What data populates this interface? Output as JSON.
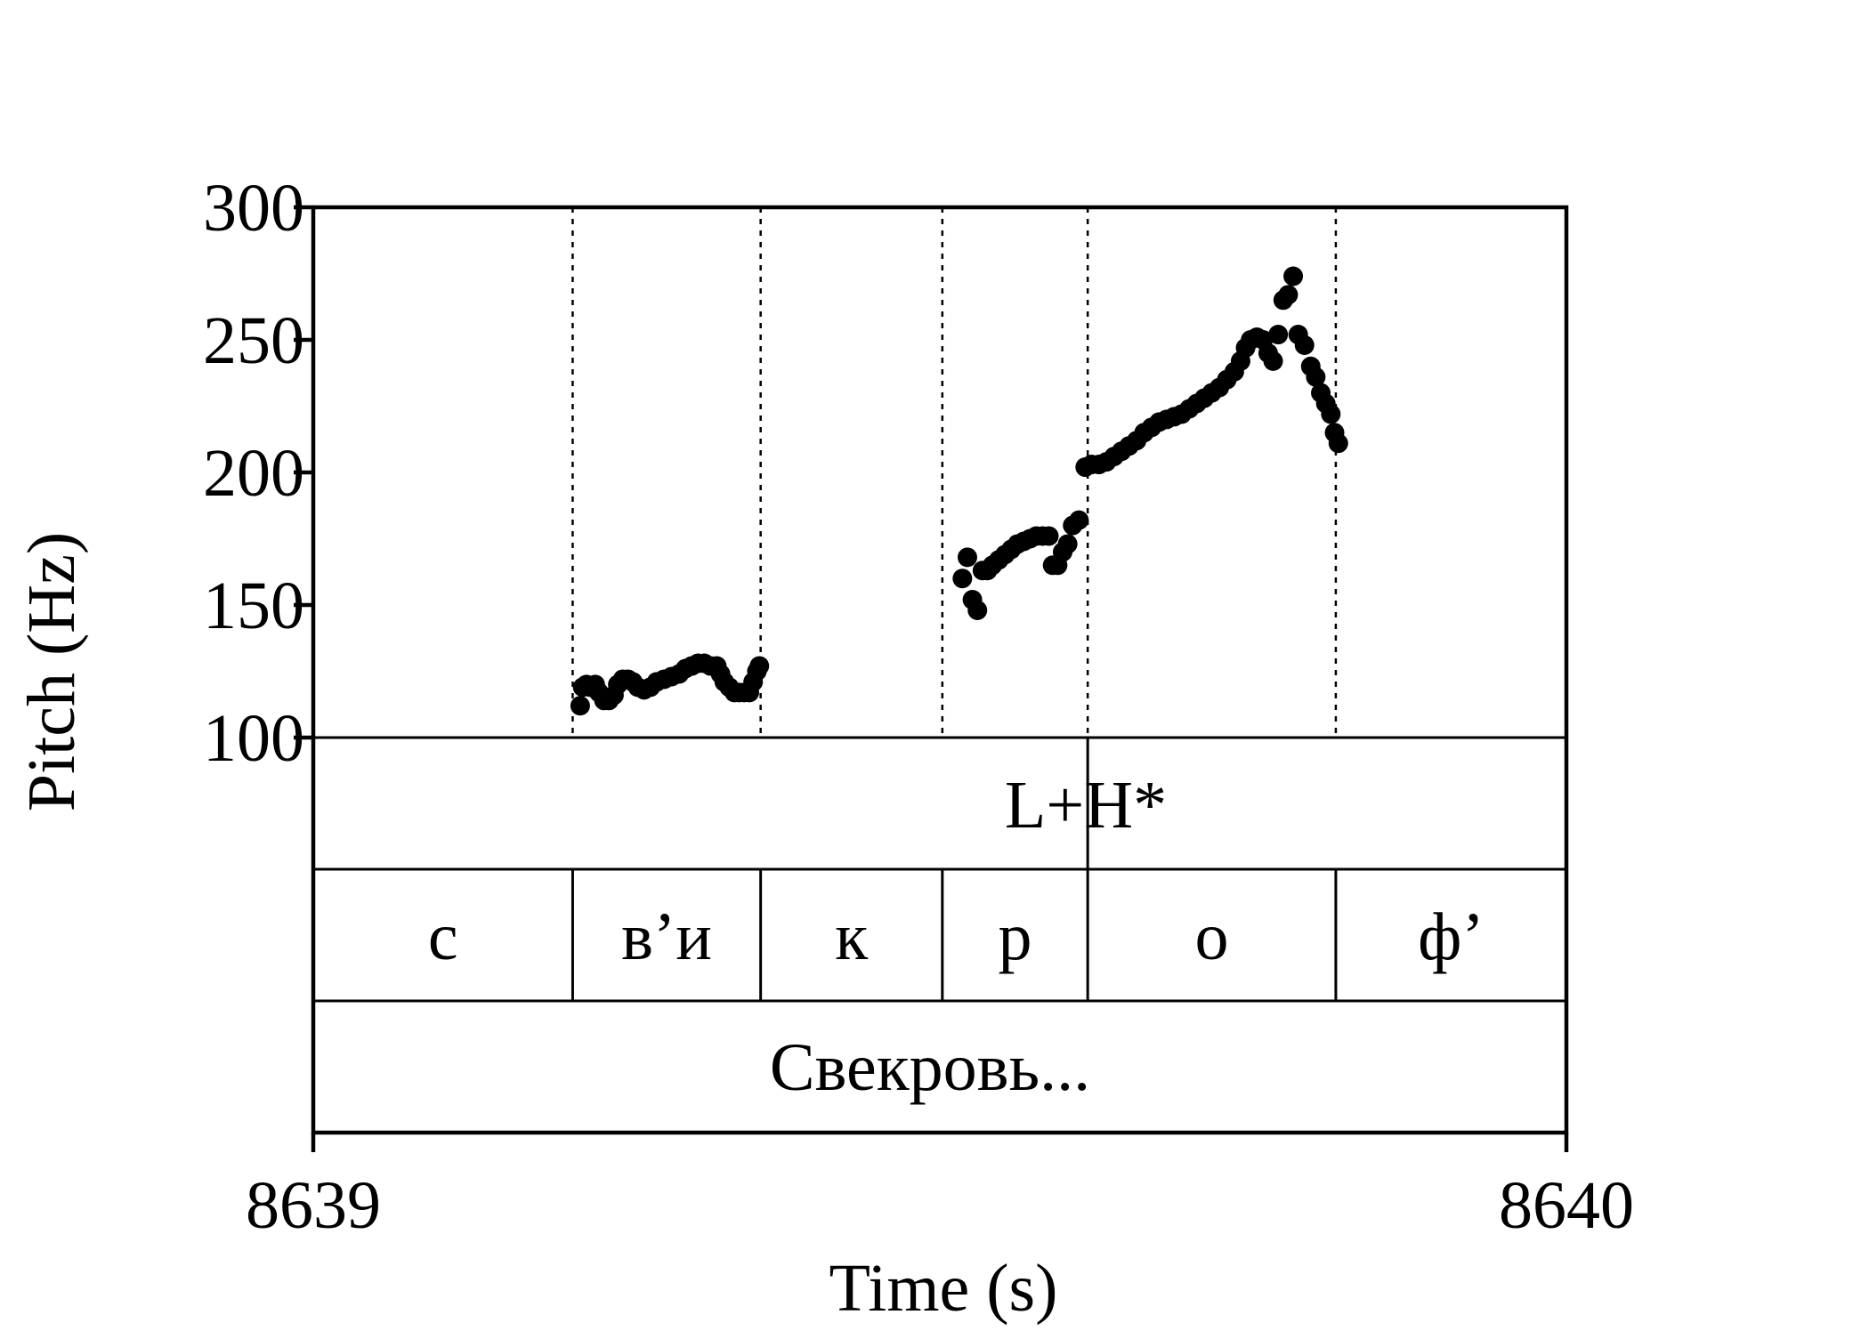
{
  "chart_data": {
    "type": "scatter",
    "title": "",
    "xlabel": "Time (s)",
    "ylabel": "Pitch (Hz)",
    "xlim": [
      8639,
      8640
    ],
    "ylim": [
      100,
      300
    ],
    "x_ticks": [
      "8639",
      "8640"
    ],
    "y_ticks": [
      100,
      150,
      200,
      250,
      300
    ],
    "grid": false,
    "boundaries": [
      8639.207,
      8639.357,
      8639.502,
      8639.618,
      8639.816
    ],
    "series": [
      {
        "color": "#000000",
        "points": [
          [
            8639.213,
            112
          ],
          [
            8639.215,
            119
          ],
          [
            8639.218,
            120
          ],
          [
            8639.221,
            119
          ],
          [
            8639.225,
            120
          ],
          [
            8639.228,
            117
          ],
          [
            8639.232,
            114
          ],
          [
            8639.236,
            114
          ],
          [
            8639.24,
            116
          ],
          [
            8639.243,
            120
          ],
          [
            8639.247,
            122
          ],
          [
            8639.251,
            122
          ],
          [
            8639.255,
            121
          ],
          [
            8639.259,
            119
          ],
          [
            8639.264,
            118
          ],
          [
            8639.269,
            119
          ],
          [
            8639.274,
            121
          ],
          [
            8639.28,
            122
          ],
          [
            8639.286,
            123
          ],
          [
            8639.292,
            124
          ],
          [
            8639.297,
            126
          ],
          [
            8639.302,
            127
          ],
          [
            8639.307,
            128
          ],
          [
            8639.312,
            128
          ],
          [
            8639.317,
            127
          ],
          [
            8639.322,
            127
          ],
          [
            8639.325,
            124
          ],
          [
            8639.328,
            121
          ],
          [
            8639.332,
            119
          ],
          [
            8639.336,
            117
          ],
          [
            8639.34,
            117
          ],
          [
            8639.344,
            117
          ],
          [
            8639.348,
            117
          ],
          [
            8639.351,
            121
          ],
          [
            8639.354,
            125
          ],
          [
            8639.356,
            127
          ],
          [
            8639.518,
            160
          ],
          [
            8639.522,
            168
          ],
          [
            8639.526,
            152
          ],
          [
            8639.53,
            148
          ],
          [
            8639.534,
            163
          ],
          [
            8639.538,
            163
          ],
          [
            8639.542,
            165
          ],
          [
            8639.547,
            167
          ],
          [
            8639.552,
            169
          ],
          [
            8639.557,
            171
          ],
          [
            8639.562,
            173
          ],
          [
            8639.567,
            174
          ],
          [
            8639.572,
            175
          ],
          [
            8639.577,
            176
          ],
          [
            8639.582,
            176
          ],
          [
            8639.587,
            176
          ],
          [
            8639.59,
            165
          ],
          [
            8639.594,
            165
          ],
          [
            8639.598,
            170
          ],
          [
            8639.602,
            173
          ],
          [
            8639.606,
            180
          ],
          [
            8639.611,
            182
          ],
          [
            8639.616,
            202
          ],
          [
            8639.621,
            203
          ],
          [
            8639.627,
            203
          ],
          [
            8639.633,
            204
          ],
          [
            8639.639,
            206
          ],
          [
            8639.645,
            208
          ],
          [
            8639.651,
            210
          ],
          [
            8639.657,
            212
          ],
          [
            8639.663,
            215
          ],
          [
            8639.669,
            217
          ],
          [
            8639.675,
            219
          ],
          [
            8639.681,
            220
          ],
          [
            8639.687,
            221
          ],
          [
            8639.693,
            222
          ],
          [
            8639.699,
            224
          ],
          [
            8639.705,
            226
          ],
          [
            8639.711,
            228
          ],
          [
            8639.717,
            230
          ],
          [
            8639.723,
            232
          ],
          [
            8639.729,
            235
          ],
          [
            8639.735,
            238
          ],
          [
            8639.74,
            242
          ],
          [
            8639.744,
            247
          ],
          [
            8639.748,
            250
          ],
          [
            8639.753,
            251
          ],
          [
            8639.758,
            250
          ],
          [
            8639.762,
            245
          ],
          [
            8639.766,
            242
          ],
          [
            8639.77,
            252
          ],
          [
            8639.774,
            265
          ],
          [
            8639.778,
            267
          ],
          [
            8639.782,
            274
          ],
          [
            8639.786,
            252
          ],
          [
            8639.791,
            248
          ],
          [
            8639.796,
            240
          ],
          [
            8639.8,
            236
          ],
          [
            8639.804,
            230
          ],
          [
            8639.808,
            226
          ],
          [
            8639.812,
            222
          ],
          [
            8639.815,
            215
          ],
          [
            8639.818,
            211
          ]
        ]
      }
    ]
  },
  "tiers": {
    "tone": [
      {
        "text": "L+H*",
        "boundary": 8639.618
      }
    ],
    "segments": [
      {
        "text": "с",
        "start": 8639.0,
        "end": 8639.207
      },
      {
        "text": "в’и",
        "start": 8639.207,
        "end": 8639.357
      },
      {
        "text": "к",
        "start": 8639.357,
        "end": 8639.502
      },
      {
        "text": "р",
        "start": 8639.502,
        "end": 8639.618
      },
      {
        "text": "о",
        "start": 8639.618,
        "end": 8639.816
      },
      {
        "text": "ф’",
        "start": 8639.816,
        "end": 8640.0
      }
    ],
    "phrase": [
      {
        "text": "Свекровь...",
        "start": 8639.0,
        "end": 8640.0
      }
    ]
  }
}
